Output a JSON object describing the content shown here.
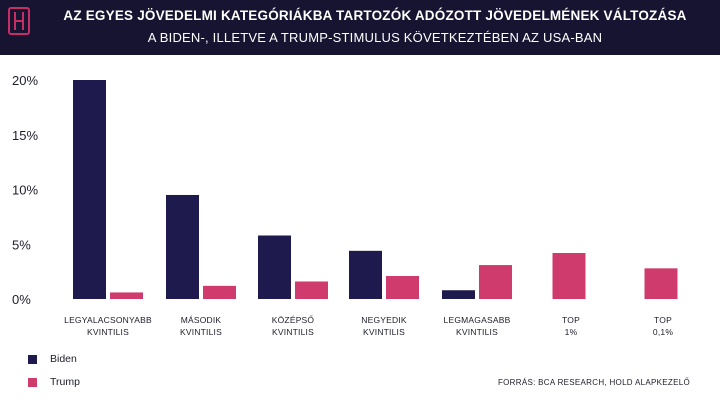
{
  "header": {
    "title": "AZ EGYES JÖVEDELMI KATEGÓRIÁKBA TARTOZÓK ADÓZOTT JÖVEDELMÉNEK VÁLTOZÁSA",
    "subtitle": "A BIDEN-, ILLETVE A TRUMP-STIMULUS KÖVETKEZTÉBEN AZ USA-BAN"
  },
  "colors": {
    "header_bg": "#171432",
    "logo": "#c62f63",
    "biden": "#1e1a4d",
    "trump": "#cf3b6c"
  },
  "legend": {
    "biden": "Biden",
    "trump": "Trump"
  },
  "source": "FORRÁS: BCA RESEARCH, HOLD ALAPKEZELŐ",
  "chart_data": {
    "type": "bar",
    "categories": [
      [
        "LEGYALACSONYABB",
        "KVINTILIS"
      ],
      [
        "MÁSODIK",
        "KVINTILIS"
      ],
      [
        "KÖZÉPSŐ",
        "KVINTILIS"
      ],
      [
        "NEGYEDIK",
        "KVINTILIS"
      ],
      [
        "LEGMAGASABB",
        "KVINTILIS"
      ],
      [
        "TOP",
        "1%"
      ],
      [
        "TOP",
        "0,1%"
      ]
    ],
    "series": [
      {
        "name": "Biden",
        "values": [
          20.0,
          9.5,
          5.8,
          4.4,
          0.8,
          null,
          null
        ]
      },
      {
        "name": "Trump",
        "values": [
          0.6,
          1.2,
          1.6,
          2.1,
          3.1,
          4.2,
          2.8
        ]
      }
    ],
    "ylim": [
      0,
      20
    ],
    "yticks": [
      "0%",
      "5%",
      "10%",
      "15%",
      "20%"
    ],
    "ytick_values": [
      0,
      5,
      10,
      15,
      20
    ],
    "grid": false,
    "legend_position": "bottom-left"
  }
}
